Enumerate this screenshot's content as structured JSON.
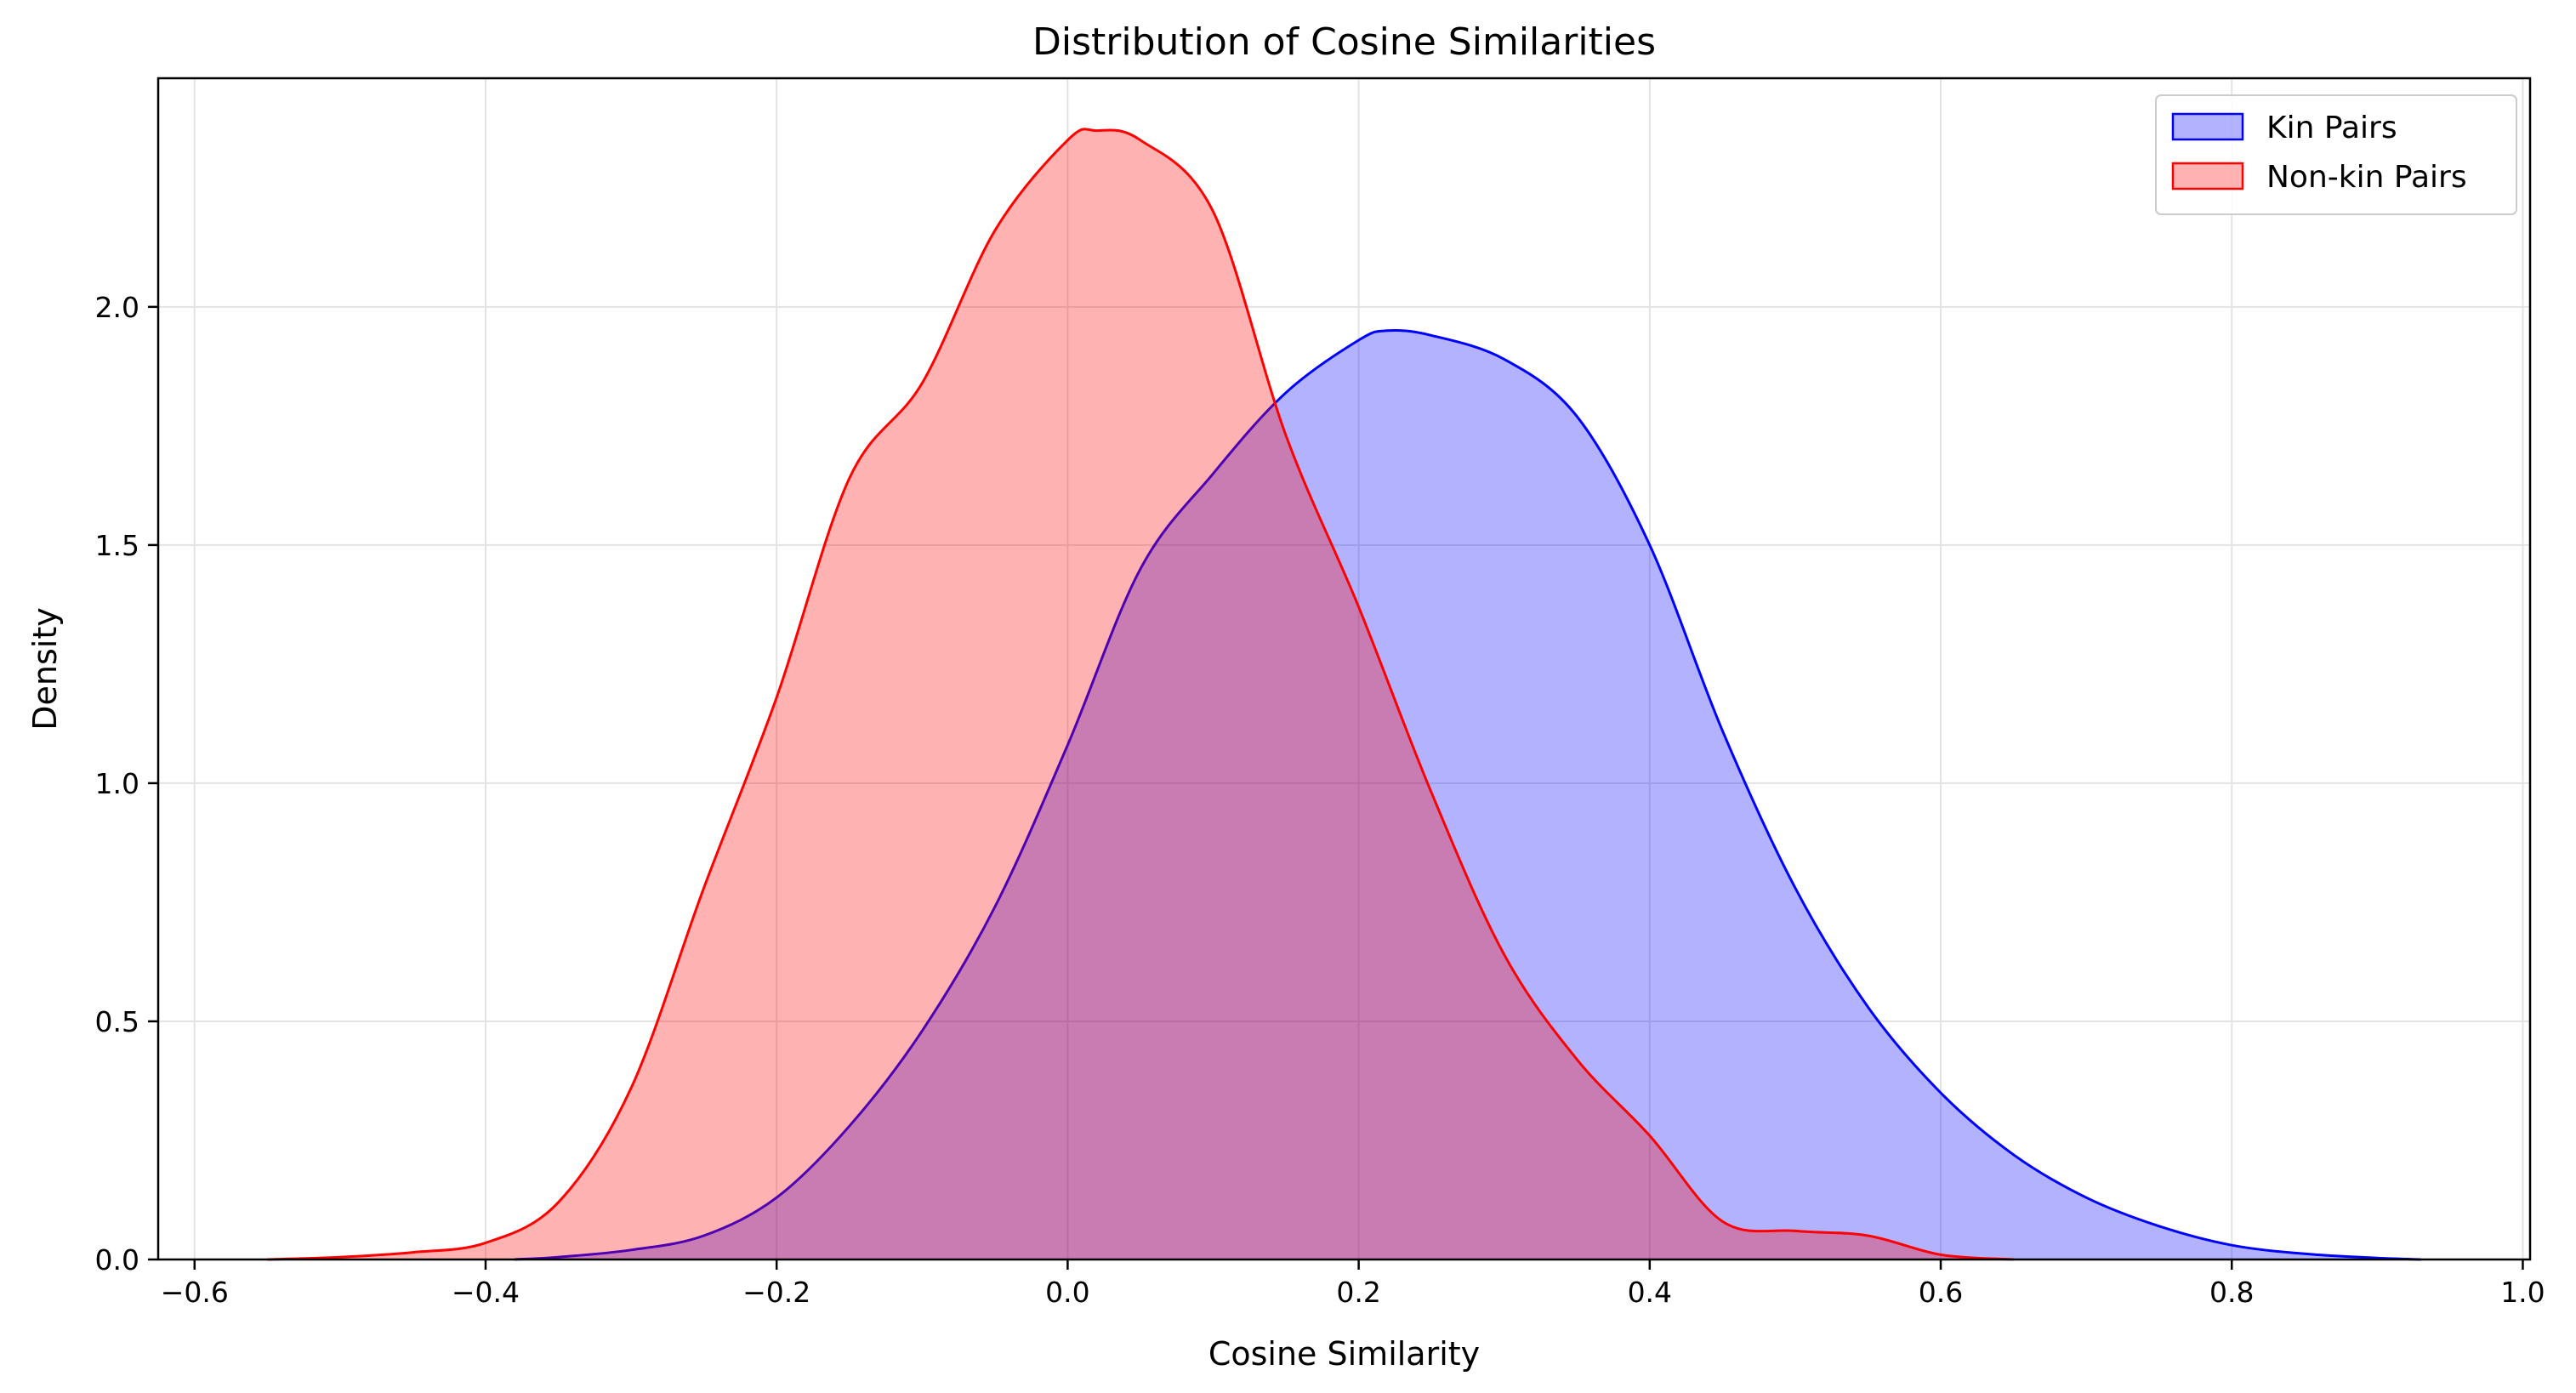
{
  "chart_data": {
    "type": "area",
    "title": "Distribution of Cosine Similarities",
    "xlabel": "Cosine Similarity",
    "ylabel": "Density",
    "xlim": [
      -0.625,
      1.005
    ],
    "ylim": [
      0,
      2.48
    ],
    "xticks": [
      -0.6,
      -0.4,
      -0.2,
      0.0,
      0.2,
      0.4,
      0.6,
      0.8,
      1.0
    ],
    "xtick_labels": [
      "−0.6",
      "−0.4",
      "−0.2",
      "0.0",
      "0.2",
      "0.4",
      "0.6",
      "0.8",
      "1.0"
    ],
    "yticks": [
      0.0,
      0.5,
      1.0,
      1.5,
      2.0
    ],
    "ytick_labels": [
      "0.0",
      "0.5",
      "1.0",
      "1.5",
      "2.0"
    ],
    "grid": true,
    "legend_position": "top-right",
    "series": [
      {
        "name": "Kin Pairs",
        "line_color": "#0000ff",
        "fill_color": "#0000ff",
        "fill_opacity": 0.3,
        "x": [
          -0.38,
          -0.35,
          -0.3,
          -0.25,
          -0.2,
          -0.15,
          -0.1,
          -0.05,
          0.0,
          0.05,
          0.1,
          0.15,
          0.2,
          0.22,
          0.25,
          0.3,
          0.35,
          0.4,
          0.45,
          0.5,
          0.55,
          0.6,
          0.65,
          0.7,
          0.75,
          0.8,
          0.85,
          0.9,
          0.93
        ],
        "y": [
          0.0,
          0.005,
          0.02,
          0.05,
          0.13,
          0.28,
          0.48,
          0.74,
          1.08,
          1.45,
          1.65,
          1.82,
          1.93,
          1.95,
          1.94,
          1.89,
          1.77,
          1.5,
          1.11,
          0.78,
          0.53,
          0.35,
          0.22,
          0.13,
          0.07,
          0.03,
          0.012,
          0.003,
          0.0
        ]
      },
      {
        "name": "Non-kin Pairs",
        "line_color": "#ff0000",
        "fill_color": "#ff0000",
        "fill_opacity": 0.3,
        "x": [
          -0.55,
          -0.5,
          -0.45,
          -0.4,
          -0.35,
          -0.3,
          -0.25,
          -0.2,
          -0.15,
          -0.1,
          -0.05,
          0.0,
          0.02,
          0.05,
          0.1,
          0.15,
          0.2,
          0.25,
          0.3,
          0.35,
          0.4,
          0.45,
          0.5,
          0.55,
          0.6,
          0.65
        ],
        "y": [
          0.0,
          0.005,
          0.015,
          0.035,
          0.12,
          0.36,
          0.78,
          1.18,
          1.64,
          1.84,
          2.16,
          2.35,
          2.37,
          2.35,
          2.2,
          1.73,
          1.37,
          0.98,
          0.64,
          0.42,
          0.26,
          0.08,
          0.06,
          0.05,
          0.01,
          0.0
        ]
      }
    ]
  }
}
